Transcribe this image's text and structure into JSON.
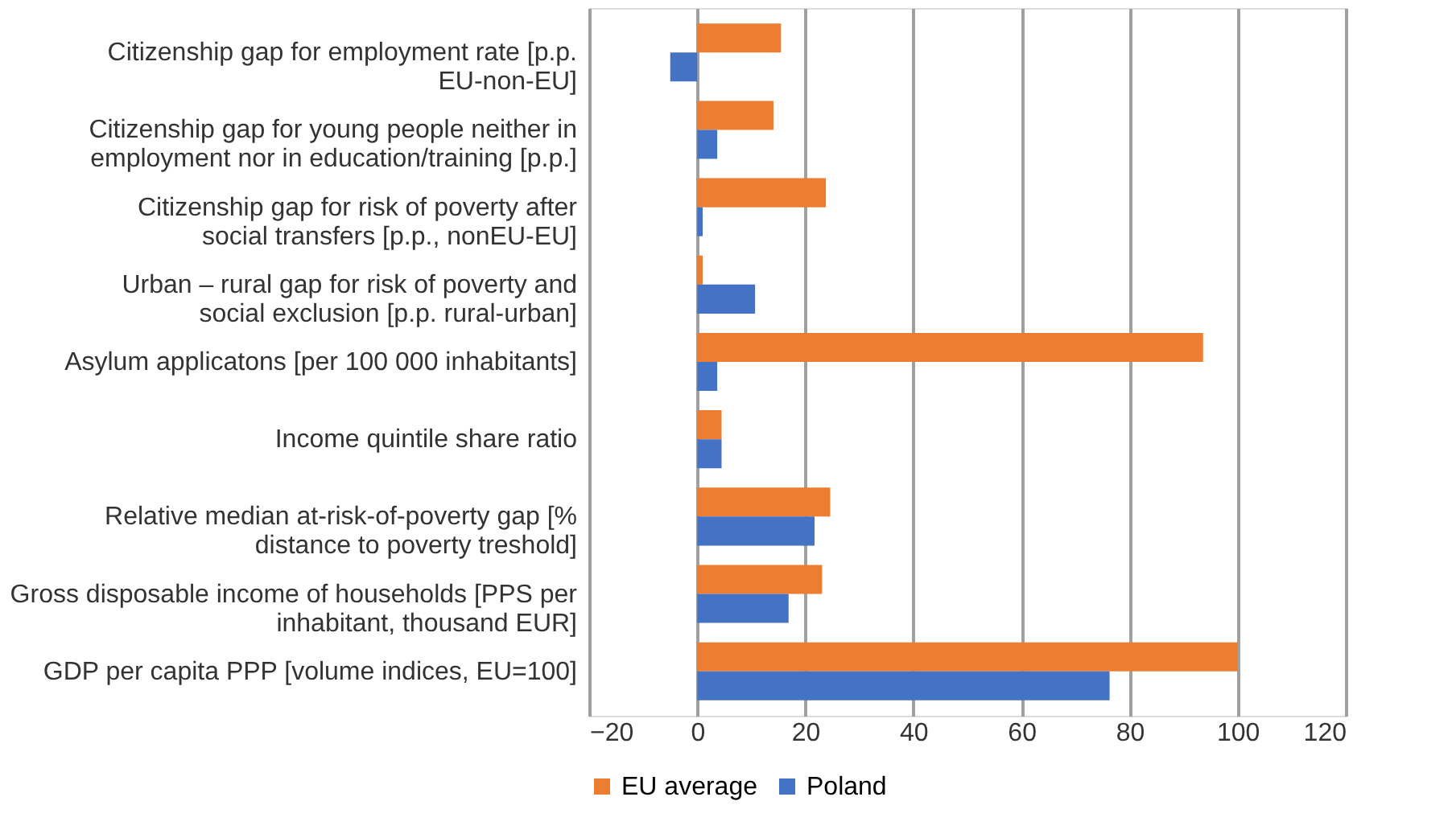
{
  "chart_data": {
    "type": "bar",
    "orientation": "horizontal",
    "categories": [
      "Citizenship gap for employment rate [p.p. EU-non-EU]",
      "Citizenship gap for young people neither in employment nor in education/training [p.p.]",
      "Citizenship gap for risk of poverty after social transfers [p.p., nonEU-EU]",
      "Urban – rural gap for risk of poverty and social exclusion [p.p. rural-urban]",
      "Asylum applicatons [per 100 000 inhabitants]",
      "Income quintile share ratio",
      "Relative median at-risk-of-poverty gap [% distance to poverty treshold]",
      "Gross disposable income of households [PPS per inhabitant, thousand EUR]",
      "GDP per capita PPP [volume indices, EU=100]"
    ],
    "series": [
      {
        "name": "EU average",
        "color": "#ed7d31",
        "values": [
          15.5,
          14.1,
          23.8,
          1.0,
          93.6,
          4.5,
          24.6,
          23.1,
          100
        ]
      },
      {
        "name": "Poland",
        "color": "#4472c4",
        "values": [
          -5.0,
          3.7,
          1.0,
          10.7,
          3.7,
          4.5,
          21.7,
          16.9,
          76.3
        ]
      }
    ],
    "xlim": [
      -20,
      120
    ],
    "xticks": [
      -20,
      0,
      20,
      40,
      60,
      80,
      100,
      120
    ],
    "grid": "x",
    "legend": "bottom"
  }
}
